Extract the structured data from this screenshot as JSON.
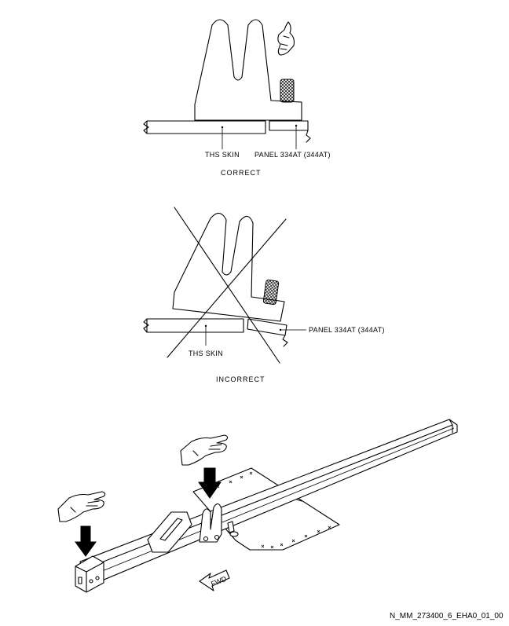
{
  "labels": {
    "ths_skin": "THS SKIN",
    "panel": "PANEL 334AT (344AT)",
    "correct": "CORRECT",
    "incorrect": "INCORRECT",
    "fwd": "FWD"
  },
  "figure_ref": "N_MM_273400_6_EHA0_01_00"
}
